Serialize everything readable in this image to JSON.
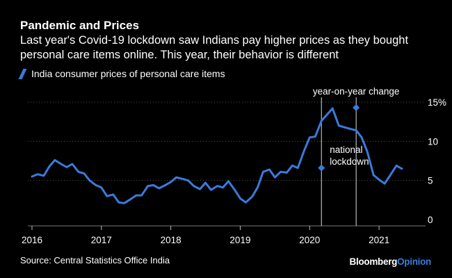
{
  "title": "Pandemic and Prices",
  "subtitle": "Last year's Covid-19 lockdown saw Indians pay higher prices as they bought personal care items online. This year, their behavior is different",
  "source": "Source: Central Statistics Office India",
  "brand": {
    "part1": "Bloomberg",
    "part2": "Opinion"
  },
  "colors": {
    "line": "#3a7bdc",
    "background": "#000000",
    "text": "#ffffff",
    "grid": "#555555",
    "brand_accent": "#3e7bd6"
  },
  "chart_data": {
    "type": "line",
    "title": "Pandemic and Prices",
    "xlabel": "",
    "ylabel": "",
    "ylim": [
      0,
      15
    ],
    "xlim": [
      2016.0,
      2021.55
    ],
    "y_ticks": [
      {
        "value": 0,
        "label": "0"
      },
      {
        "value": 5,
        "label": "5"
      },
      {
        "value": 10,
        "label": "10"
      },
      {
        "value": 15,
        "label": "15%"
      }
    ],
    "x_ticks": [
      {
        "value": 2016,
        "label": "2016"
      },
      {
        "value": 2017,
        "label": "2017"
      },
      {
        "value": 2018,
        "label": "2018"
      },
      {
        "value": 2019,
        "label": "2019"
      },
      {
        "value": 2020,
        "label": "2020"
      },
      {
        "value": 2021,
        "label": "2021"
      }
    ],
    "series": [
      {
        "name": "India consumer prices of personal care items",
        "x": [
          2016.0,
          2016.08,
          2016.17,
          2016.25,
          2016.33,
          2016.42,
          2016.5,
          2016.58,
          2016.67,
          2016.75,
          2016.83,
          2016.92,
          2017.0,
          2017.08,
          2017.17,
          2017.25,
          2017.33,
          2017.42,
          2017.5,
          2017.58,
          2017.67,
          2017.75,
          2017.83,
          2017.92,
          2018.0,
          2018.08,
          2018.17,
          2018.25,
          2018.33,
          2018.42,
          2018.5,
          2018.58,
          2018.67,
          2018.75,
          2018.83,
          2018.92,
          2019.0,
          2019.08,
          2019.17,
          2019.25,
          2019.33,
          2019.42,
          2019.5,
          2019.58,
          2019.67,
          2019.75,
          2019.83,
          2019.92,
          2020.0,
          2020.08,
          2020.17,
          2020.25,
          2020.33,
          2020.42,
          2020.5,
          2020.58,
          2020.67,
          2020.75,
          2020.83,
          2020.92,
          2021.0,
          2021.08,
          2021.17,
          2021.25,
          2021.33
        ],
        "values": [
          5.5,
          5.8,
          5.6,
          6.8,
          7.6,
          7.1,
          6.7,
          7.1,
          6.1,
          5.9,
          5.0,
          4.4,
          4.1,
          3.0,
          3.2,
          2.2,
          2.1,
          2.6,
          3.1,
          3.1,
          4.3,
          4.4,
          4.0,
          4.4,
          4.8,
          5.4,
          5.2,
          5.0,
          4.3,
          3.9,
          4.7,
          3.8,
          4.3,
          4.1,
          4.9,
          3.8,
          2.7,
          2.2,
          2.9,
          4.1,
          6.1,
          6.4,
          5.4,
          6.1,
          6.0,
          6.9,
          6.6,
          8.8,
          10.5,
          10.6,
          12.6,
          13.4,
          14.2,
          12.0,
          11.8,
          11.6,
          11.4,
          10.5,
          8.7,
          5.7,
          5.1,
          4.6,
          5.8,
          6.9,
          6.5
        ]
      }
    ],
    "annotations": [
      {
        "x": 2020.17,
        "label_lines": [
          "national",
          "lockdown"
        ],
        "marker_y": 6.6
      },
      {
        "x": 2020.67,
        "label_lines": [
          "year-on-year change"
        ],
        "marker_y": 14.3
      }
    ]
  }
}
